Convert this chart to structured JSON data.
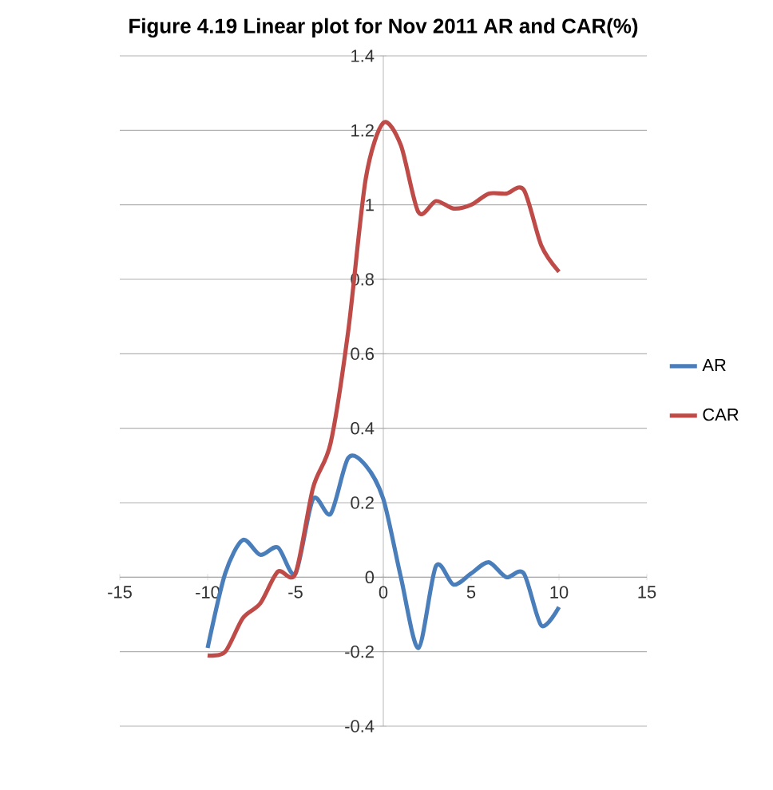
{
  "chart_data": {
    "type": "line",
    "title": "Figure 4.19 Linear plot for Nov 2011 AR and CAR(%)",
    "x": [
      -10,
      -9,
      -8,
      -7,
      -6,
      -5,
      -4,
      -3,
      -2,
      -1,
      0,
      1,
      2,
      3,
      4,
      5,
      6,
      7,
      8,
      9,
      10
    ],
    "series": [
      {
        "name": "AR",
        "color": "#4a7ebb",
        "values": [
          -0.19,
          0.01,
          0.1,
          0.06,
          0.08,
          0.01,
          0.21,
          0.17,
          0.32,
          0.3,
          0.21,
          0.0,
          -0.19,
          0.03,
          -0.02,
          0.01,
          0.04,
          0.0,
          0.01,
          -0.13,
          -0.08
        ]
      },
      {
        "name": "CAR",
        "color": "#be4b48",
        "values": [
          -0.21,
          -0.2,
          -0.11,
          -0.07,
          0.015,
          0.01,
          0.24,
          0.36,
          0.66,
          1.07,
          1.22,
          1.16,
          0.98,
          1.01,
          0.99,
          1.0,
          1.03,
          1.03,
          1.04,
          0.89,
          0.82
        ]
      }
    ],
    "xlim": [
      -15,
      15
    ],
    "xticks": [
      -15,
      -10,
      -5,
      0,
      5,
      10,
      15
    ],
    "ylim": [
      -0.4,
      1.4
    ],
    "yticks": [
      -0.4,
      -0.2,
      0,
      0.2,
      0.4,
      0.6,
      0.8,
      1,
      1.2,
      1.4
    ],
    "grid": "y",
    "legend": "right",
    "marker": "none",
    "line_style": "solid"
  }
}
